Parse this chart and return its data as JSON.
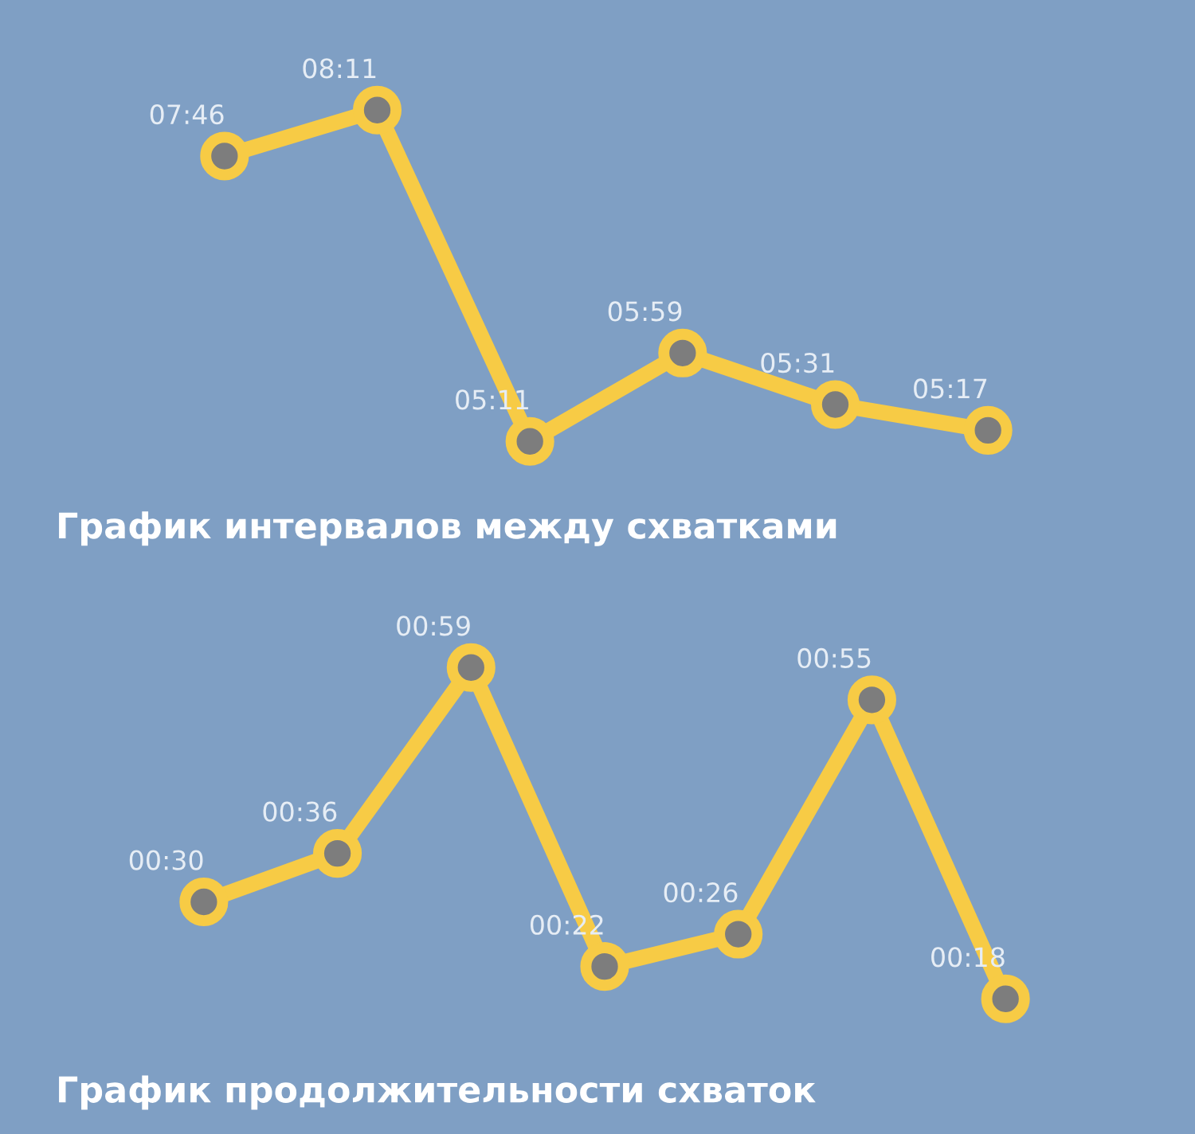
{
  "chart_data": [
    {
      "type": "line",
      "title": "График интервалов между схватками",
      "categories": [
        null,
        null,
        null,
        null,
        null,
        null
      ],
      "series": [
        {
          "color": "#f7cb45",
          "values": [
            466,
            491,
            311,
            359,
            331,
            317
          ],
          "value_labels": [
            "07:46",
            "08:11",
            "05:11",
            "05:59",
            "05:31",
            "05:17"
          ]
        }
      ],
      "marker": "circle",
      "line_style": "solid"
    },
    {
      "type": "line",
      "title": "График продолжительности схваток",
      "categories": [
        null,
        null,
        null,
        null,
        null,
        null,
        null
      ],
      "series": [
        {
          "color": "#f7cb45",
          "values": [
            30,
            36,
            59,
            22,
            26,
            55,
            18
          ],
          "value_labels": [
            "00:30",
            "00:36",
            "00:59",
            "00:22",
            "00:26",
            "00:55",
            "00:18"
          ]
        }
      ],
      "marker": "circle",
      "line_style": "solid"
    }
  ]
}
